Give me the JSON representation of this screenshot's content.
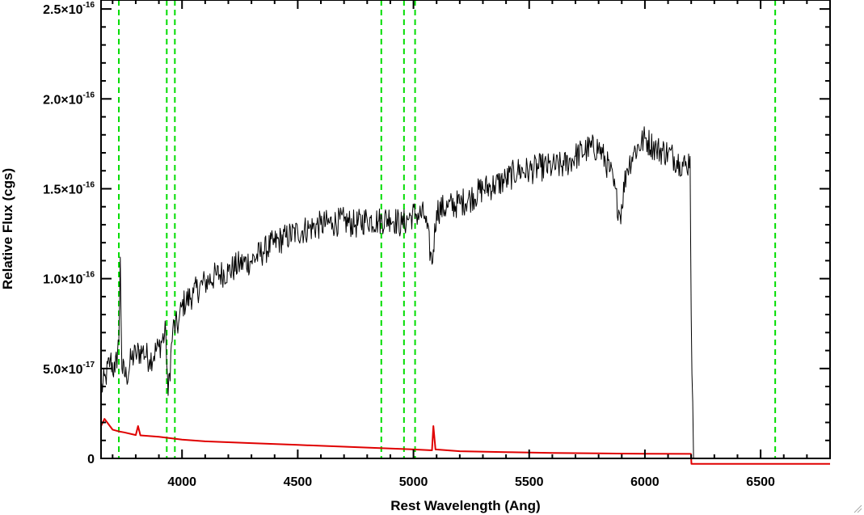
{
  "chart_data": {
    "type": "line",
    "title": "",
    "xlabel": "Rest Wavelength (Ang)",
    "ylabel": "Relative Flux (cgs)",
    "xlim": [
      3650,
      6800
    ],
    "ylim": [
      0,
      2.55e-16
    ],
    "x_ticks": [
      {
        "value": 4000,
        "label": "4000"
      },
      {
        "value": 4500,
        "label": "4500"
      },
      {
        "value": 5000,
        "label": "5000"
      },
      {
        "value": 5500,
        "label": "5500"
      },
      {
        "value": 6000,
        "label": "6000"
      },
      {
        "value": 6500,
        "label": "6500"
      }
    ],
    "y_ticks": [
      {
        "value": 0,
        "mantissa": "0",
        "exponent": ""
      },
      {
        "value": 5e-17,
        "mantissa": "5.0×10",
        "exponent": "-17"
      },
      {
        "value": 1e-16,
        "mantissa": "1.0×10",
        "exponent": "-16"
      },
      {
        "value": 1.5e-16,
        "mantissa": "1.5×10",
        "exponent": "-16"
      },
      {
        "value": 2e-16,
        "mantissa": "2.0×10",
        "exponent": "-16"
      },
      {
        "value": 2.5e-16,
        "mantissa": "2.5×10",
        "exponent": "-16"
      }
    ],
    "vertical_lines": [
      3727,
      3934,
      3969,
      4861,
      4959,
      5007,
      6563
    ],
    "series": [
      {
        "color": "#000000",
        "x": [
          3650,
          3670,
          3690,
          3710,
          3727,
          3733,
          3740,
          3760,
          3780,
          3800,
          3830,
          3860,
          3900,
          3930,
          3940,
          3960,
          3985,
          4000,
          4050,
          4100,
          4150,
          4200,
          4250,
          4300,
          4350,
          4400,
          4450,
          4500,
          4550,
          4600,
          4650,
          4700,
          4750,
          4800,
          4850,
          4900,
          4950,
          4990,
          5010,
          5050,
          5080,
          5100,
          5150,
          5200,
          5250,
          5300,
          5350,
          5400,
          5450,
          5500,
          5550,
          5600,
          5650,
          5700,
          5750,
          5800,
          5850,
          5893,
          5920,
          5950,
          6000,
          6050,
          6100,
          6150,
          6180,
          6195,
          6200,
          6210
        ],
        "y": [
          3.8e-17,
          4.5e-17,
          5.5e-17,
          4.8e-17,
          6.5e-17,
          1.12e-16,
          5e-17,
          4.5e-17,
          5.5e-17,
          5.8e-17,
          6e-17,
          5.5e-17,
          6.2e-17,
          7e-17,
          3.5e-17,
          7.2e-17,
          7.5e-17,
          8.5e-17,
          9.2e-17,
          9.8e-17,
          1.02e-16,
          1.04e-16,
          1.08e-16,
          1.1e-16,
          1.15e-16,
          1.2e-16,
          1.23e-16,
          1.26e-16,
          1.28e-16,
          1.3e-16,
          1.31e-16,
          1.32e-16,
          1.3e-16,
          1.33e-16,
          1.32e-16,
          1.34e-16,
          1.3e-16,
          1.35e-16,
          1.36e-16,
          1.35e-16,
          1.08e-16,
          1.38e-16,
          1.4e-16,
          1.42e-16,
          1.45e-16,
          1.5e-16,
          1.52e-16,
          1.55e-16,
          1.6e-16,
          1.6e-16,
          1.62e-16,
          1.62e-16,
          1.63e-16,
          1.68e-16,
          1.72e-16,
          1.73e-16,
          1.6e-16,
          1.35e-16,
          1.6e-16,
          1.7e-16,
          1.78e-16,
          1.72e-16,
          1.7e-16,
          1.65e-16,
          1.62e-16,
          1.68e-16,
          8e-17,
          0
        ]
      },
      {
        "color": "#e00000",
        "x": [
          3650,
          3665,
          3700,
          3727,
          3750,
          3800,
          3810,
          3820,
          3900,
          4000,
          4100,
          4300,
          4500,
          4700,
          4900,
          5000,
          5080,
          5086,
          5095,
          5200,
          5400,
          5600,
          5800,
          6000,
          6199,
          6201,
          6800
        ],
        "y": [
          1.8e-17,
          2.2e-17,
          1.6e-17,
          1.5e-17,
          1.45e-17,
          1.3e-17,
          1.8e-17,
          1.28e-17,
          1.2e-17,
          1.05e-17,
          9.5e-18,
          8.5e-18,
          7.5e-18,
          6.5e-18,
          5.5e-18,
          5e-18,
          4.5e-18,
          1.8e-17,
          5e-18,
          4e-18,
          3.5e-18,
          3e-18,
          2.8e-18,
          2.6e-18,
          2.5e-18,
          -3e-18,
          -3e-18
        ]
      }
    ],
    "grid": false,
    "colors": {
      "vertical_lines": "#00dd00",
      "flux": "#000000",
      "error": "#e00000"
    }
  }
}
